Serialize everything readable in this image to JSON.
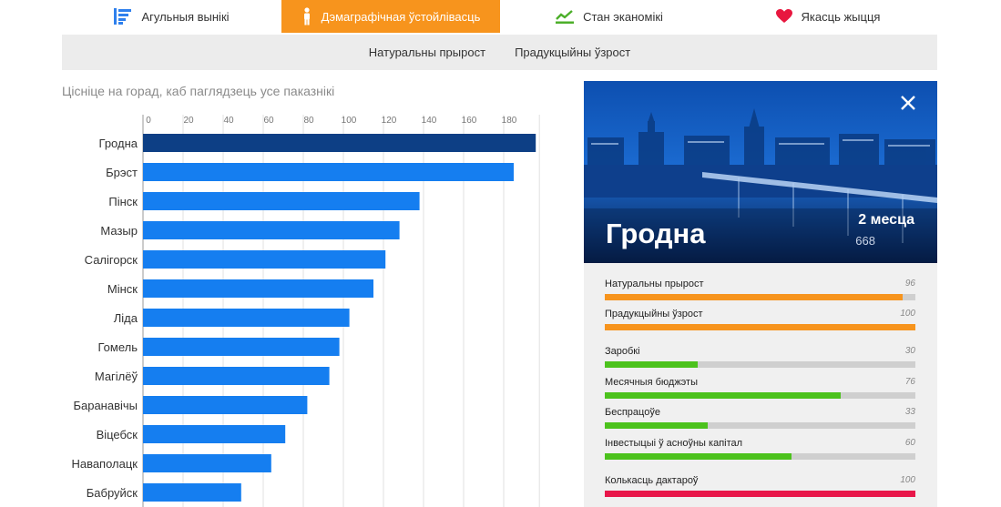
{
  "nav": {
    "tabs": [
      {
        "label": "Агульныя вынікі",
        "icon": "list-icon",
        "color": "#2f80ed",
        "active": false
      },
      {
        "label": "Дэмаграфічная ўстойлівасць",
        "icon": "person-icon",
        "color": "#ffffff",
        "active": true
      },
      {
        "label": "Стан эканомікі",
        "icon": "trend-icon",
        "color": "#4caf2a",
        "active": false
      },
      {
        "label": "Якасць жыцця",
        "icon": "heart-icon",
        "color": "#e8173f",
        "active": false
      }
    ],
    "active_color": "#f7941d"
  },
  "subnav": {
    "items": [
      "Натуральны прырост",
      "Прадукцыйны ўзрост"
    ]
  },
  "hint": "Цісніце на горад, каб паглядзець усе паказнікі",
  "chart_data": {
    "type": "bar",
    "orientation": "horizontal",
    "categories": [
      "Гродна",
      "Брэст",
      "Пінск",
      "Мазыр",
      "Салігорск",
      "Мінск",
      "Ліда",
      "Гомель",
      "Магілёў",
      "Баранавічы",
      "Віцебск",
      "Наваполацк",
      "Бабруйск"
    ],
    "values": [
      196,
      185,
      138,
      128,
      121,
      115,
      103,
      98,
      93,
      82,
      71,
      64,
      49
    ],
    "xlim": [
      0,
      196
    ],
    "xticks": [
      0,
      20,
      40,
      60,
      80,
      100,
      120,
      140,
      160,
      180
    ],
    "grid": true,
    "highlight_index": 0,
    "bar_color": "#157ef0",
    "highlight_color": "#0d3f85"
  },
  "detail": {
    "city": "Гродна",
    "period": "2 месца",
    "sub": "668",
    "metrics": [
      {
        "label": "Натуральны прырост",
        "value": 96,
        "color": "#f7941d"
      },
      {
        "label": "Прадукцыйны ўзрост",
        "value": 100,
        "color": "#f7941d"
      },
      {
        "label": "Заробкі",
        "value": 30,
        "color": "#4cc21d"
      },
      {
        "label": "Месячныя бюджэты",
        "value": 76,
        "color": "#4cc21d"
      },
      {
        "label": "Беспрацоўе",
        "value": 33,
        "color": "#4cc21d"
      },
      {
        "label": "Інвестыцыі ў асноўны капітал",
        "value": 60,
        "color": "#4cc21d"
      },
      {
        "label": "Колькасць дактароў",
        "value": 100,
        "color": "#e8174a"
      }
    ]
  }
}
